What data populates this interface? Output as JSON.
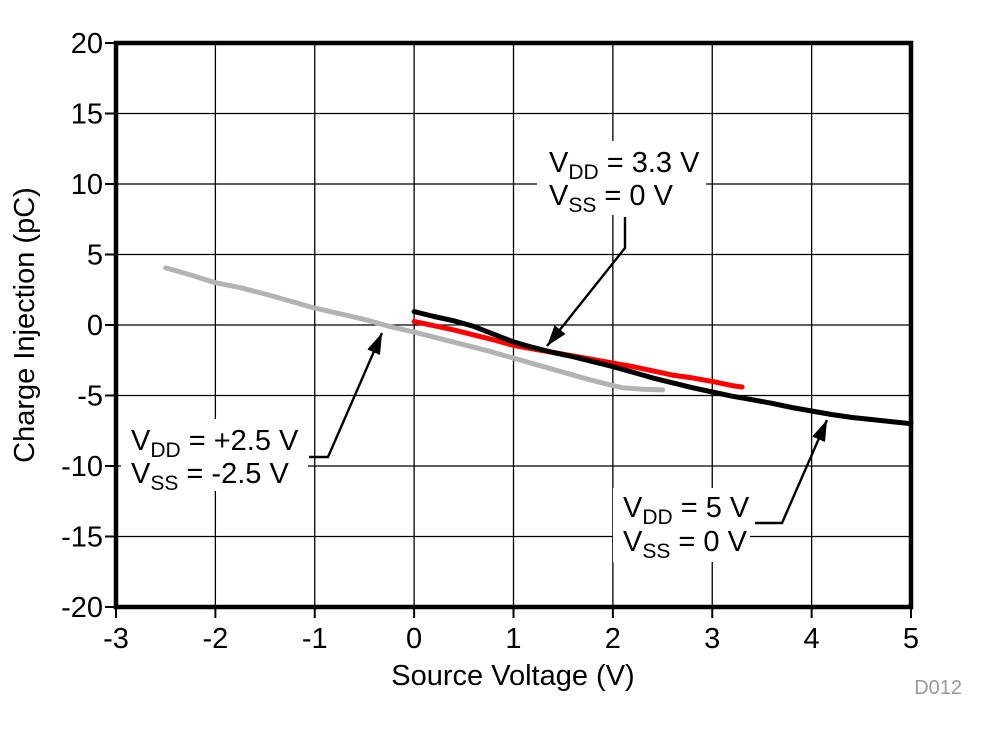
{
  "chart_data": {
    "type": "line",
    "title": "",
    "xlabel": "Source Voltage (V)",
    "ylabel": "Charge Injection (pC)",
    "xlim": [
      -3,
      5
    ],
    "ylim": [
      -20,
      20
    ],
    "xticks": [
      -3,
      -2,
      -1,
      0,
      1,
      2,
      3,
      4,
      5
    ],
    "yticks": [
      20,
      15,
      10,
      5,
      0,
      -5,
      -10,
      -15,
      -20
    ],
    "grid": true,
    "legend": "none (labels via annotations)",
    "figure_code": "D012",
    "series": [
      {
        "id": "vdd-2p5",
        "name": "VDD = +2.5 V, VSS = -2.5 V",
        "color": "#b3b3b3",
        "stroke_width": 5,
        "points": [
          [
            -2.5,
            4.05
          ],
          [
            -2.25,
            3.55
          ],
          [
            -2,
            3.0
          ],
          [
            -1.75,
            2.65
          ],
          [
            -1.5,
            2.2
          ],
          [
            -1.25,
            1.7
          ],
          [
            -1,
            1.2
          ],
          [
            -0.75,
            0.8
          ],
          [
            -0.5,
            0.4
          ],
          [
            -0.25,
            -0.1
          ],
          [
            0,
            -0.5
          ],
          [
            0.25,
            -0.95
          ],
          [
            0.5,
            -1.4
          ],
          [
            0.75,
            -1.85
          ],
          [
            1,
            -2.35
          ],
          [
            1.25,
            -2.85
          ],
          [
            1.5,
            -3.35
          ],
          [
            1.75,
            -3.85
          ],
          [
            2,
            -4.3
          ],
          [
            2.1,
            -4.45
          ],
          [
            2.3,
            -4.55
          ],
          [
            2.5,
            -4.6
          ]
        ]
      },
      {
        "id": "vdd-3p3",
        "name": "VDD = 3.3 V, VSS = 0 V",
        "color": "#ff0000",
        "stroke_width": 5,
        "points": [
          [
            0,
            0.25
          ],
          [
            0.2,
            -0.05
          ],
          [
            0.4,
            -0.35
          ],
          [
            0.6,
            -0.7
          ],
          [
            0.8,
            -1.05
          ],
          [
            1,
            -1.45
          ],
          [
            1.2,
            -1.7
          ],
          [
            1.4,
            -1.95
          ],
          [
            1.6,
            -2.2
          ],
          [
            1.8,
            -2.45
          ],
          [
            2,
            -2.7
          ],
          [
            2.2,
            -2.95
          ],
          [
            2.4,
            -3.25
          ],
          [
            2.6,
            -3.55
          ],
          [
            2.8,
            -3.75
          ],
          [
            3,
            -4.0
          ],
          [
            3.2,
            -4.3
          ],
          [
            3.3,
            -4.4
          ]
        ]
      },
      {
        "id": "vdd-5",
        "name": "VDD = 5 V, VSS = 0 V",
        "color": "#000000",
        "stroke_width": 5,
        "points": [
          [
            0,
            0.95
          ],
          [
            0.2,
            0.6
          ],
          [
            0.4,
            0.3
          ],
          [
            0.6,
            -0.1
          ],
          [
            0.8,
            -0.65
          ],
          [
            1,
            -1.2
          ],
          [
            1.2,
            -1.6
          ],
          [
            1.4,
            -1.95
          ],
          [
            1.6,
            -2.25
          ],
          [
            1.8,
            -2.6
          ],
          [
            2,
            -2.95
          ],
          [
            2.2,
            -3.35
          ],
          [
            2.4,
            -3.75
          ],
          [
            2.6,
            -4.1
          ],
          [
            2.8,
            -4.45
          ],
          [
            3,
            -4.75
          ],
          [
            3.2,
            -5.05
          ],
          [
            3.4,
            -5.3
          ],
          [
            3.6,
            -5.55
          ],
          [
            3.8,
            -5.85
          ],
          [
            4,
            -6.1
          ],
          [
            4.2,
            -6.35
          ],
          [
            4.4,
            -6.55
          ],
          [
            4.6,
            -6.7
          ],
          [
            4.8,
            -6.85
          ],
          [
            5,
            -7.0
          ]
        ]
      }
    ]
  },
  "annotations": [
    {
      "id": "vdd-3v3-callout",
      "line1": {
        "pre": "V",
        "sub": "DD",
        "post": " = 3.3 V"
      },
      "line2": {
        "pre": "V",
        "sub": "SS",
        "post": " = 0 V"
      },
      "points_to": "red curve near (1.3, -1.8)"
    },
    {
      "id": "vdd-2v5-callout",
      "line1": {
        "pre": "V",
        "sub": "DD",
        "post": " = +2.5 V"
      },
      "line2": {
        "pre": "V",
        "sub": "SS",
        "post": " = -2.5 V"
      },
      "points_to": "gray curve near (-0.3, 0)"
    },
    {
      "id": "vdd-5v-callout",
      "line1": {
        "pre": "V",
        "sub": "DD",
        "post": " = 5 V"
      },
      "line2": {
        "pre": "V",
        "sub": "SS",
        "post": " = 0 V"
      },
      "points_to": "black curve near (4.2, -6.4)"
    }
  ]
}
